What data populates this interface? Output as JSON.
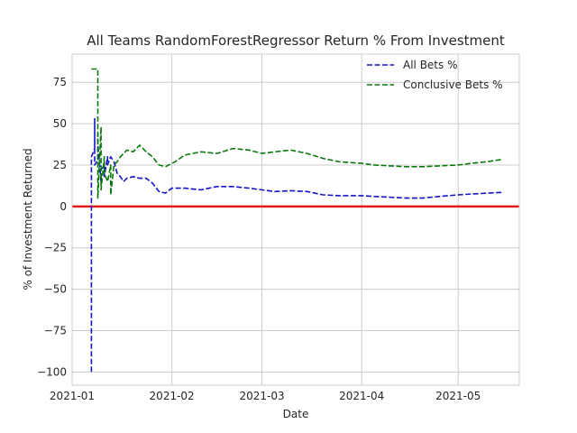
{
  "chart_data": {
    "type": "line",
    "title": "All Teams RandomForestRegressor Return % From Investment",
    "xlabel": "Date",
    "ylabel": "% of Investment Returned",
    "x_axis": "date",
    "xlim": [
      "2021-01-01",
      "2021-05-20"
    ],
    "ylim": [
      -108,
      92
    ],
    "x_ticks": [
      "2021-01",
      "2021-02",
      "2021-03",
      "2021-04",
      "2021-05"
    ],
    "x_tick_dates": [
      "2021-01-01",
      "2021-02-01",
      "2021-03-01",
      "2021-04-01",
      "2021-05-01"
    ],
    "y_ticks": [
      75,
      50,
      25,
      0,
      -25,
      -50,
      -75,
      -100
    ],
    "grid": true,
    "legend_position": "top-right",
    "reference_line": {
      "y": 0,
      "color": "#e31a1c"
    },
    "series": [
      {
        "name": "All Bets %",
        "color": "#1414c8",
        "line_style": "dashed",
        "points": [
          [
            "2021-01-07",
            -100
          ],
          [
            "2021-01-07",
            30
          ],
          [
            "2021-01-08",
            35
          ],
          [
            "2021-01-08",
            53
          ],
          [
            "2021-01-08",
            25
          ],
          [
            "2021-01-09",
            28
          ],
          [
            "2021-01-09",
            44
          ],
          [
            "2021-01-09",
            38
          ],
          [
            "2021-01-10",
            15
          ],
          [
            "2021-01-10",
            22
          ],
          [
            "2021-01-11",
            25
          ],
          [
            "2021-01-11",
            18
          ],
          [
            "2021-01-12",
            30
          ],
          [
            "2021-01-12",
            25
          ],
          [
            "2021-01-13",
            30
          ],
          [
            "2021-01-14",
            27
          ],
          [
            "2021-01-15",
            20
          ],
          [
            "2021-01-16",
            18
          ],
          [
            "2021-01-17",
            15
          ],
          [
            "2021-01-18",
            17
          ],
          [
            "2021-01-20",
            18
          ],
          [
            "2021-01-22",
            17
          ],
          [
            "2021-01-24",
            17
          ],
          [
            "2021-01-26",
            14
          ],
          [
            "2021-01-28",
            9
          ],
          [
            "2021-01-30",
            8
          ],
          [
            "2021-02-01",
            11
          ],
          [
            "2021-02-05",
            11
          ],
          [
            "2021-02-10",
            10
          ],
          [
            "2021-02-15",
            12
          ],
          [
            "2021-02-20",
            12
          ],
          [
            "2021-02-25",
            11
          ],
          [
            "2021-03-01",
            10
          ],
          [
            "2021-03-05",
            9
          ],
          [
            "2021-03-10",
            9.5
          ],
          [
            "2021-03-15",
            9
          ],
          [
            "2021-03-20",
            7
          ],
          [
            "2021-03-25",
            6.5
          ],
          [
            "2021-04-01",
            6.5
          ],
          [
            "2021-04-05",
            6
          ],
          [
            "2021-04-10",
            5.5
          ],
          [
            "2021-04-15",
            5
          ],
          [
            "2021-04-20",
            5
          ],
          [
            "2021-04-25",
            6
          ],
          [
            "2021-05-01",
            7
          ],
          [
            "2021-05-05",
            7.5
          ],
          [
            "2021-05-10",
            8
          ],
          [
            "2021-05-15",
            8.5
          ]
        ]
      },
      {
        "name": "Conclusive Bets %",
        "color": "#0a780a",
        "line_style": "dashed",
        "points": [
          [
            "2021-01-07",
            83
          ],
          [
            "2021-01-09",
            83
          ],
          [
            "2021-01-09",
            5
          ],
          [
            "2021-01-10",
            48
          ],
          [
            "2021-01-10",
            10
          ],
          [
            "2021-01-11",
            30
          ],
          [
            "2021-01-11",
            20
          ],
          [
            "2021-01-12",
            15
          ],
          [
            "2021-01-13",
            25
          ],
          [
            "2021-01-13",
            7
          ],
          [
            "2021-01-14",
            25
          ],
          [
            "2021-01-15",
            27
          ],
          [
            "2021-01-16",
            30
          ],
          [
            "2021-01-18",
            34
          ],
          [
            "2021-01-20",
            33
          ],
          [
            "2021-01-22",
            37
          ],
          [
            "2021-01-24",
            33
          ],
          [
            "2021-01-26",
            30
          ],
          [
            "2021-01-28",
            25
          ],
          [
            "2021-01-30",
            24
          ],
          [
            "2021-02-02",
            27
          ],
          [
            "2021-02-05",
            31
          ],
          [
            "2021-02-10",
            33
          ],
          [
            "2021-02-15",
            32
          ],
          [
            "2021-02-20",
            35
          ],
          [
            "2021-02-25",
            34
          ],
          [
            "2021-03-01",
            32
          ],
          [
            "2021-03-05",
            33
          ],
          [
            "2021-03-10",
            34
          ],
          [
            "2021-03-15",
            32
          ],
          [
            "2021-03-20",
            29
          ],
          [
            "2021-03-25",
            27
          ],
          [
            "2021-04-01",
            26
          ],
          [
            "2021-04-05",
            25
          ],
          [
            "2021-04-10",
            24.5
          ],
          [
            "2021-04-15",
            24
          ],
          [
            "2021-04-20",
            24
          ],
          [
            "2021-04-25",
            24.5
          ],
          [
            "2021-05-01",
            25
          ],
          [
            "2021-05-05",
            26
          ],
          [
            "2021-05-10",
            27
          ],
          [
            "2021-05-15",
            28.5
          ]
        ]
      }
    ]
  }
}
